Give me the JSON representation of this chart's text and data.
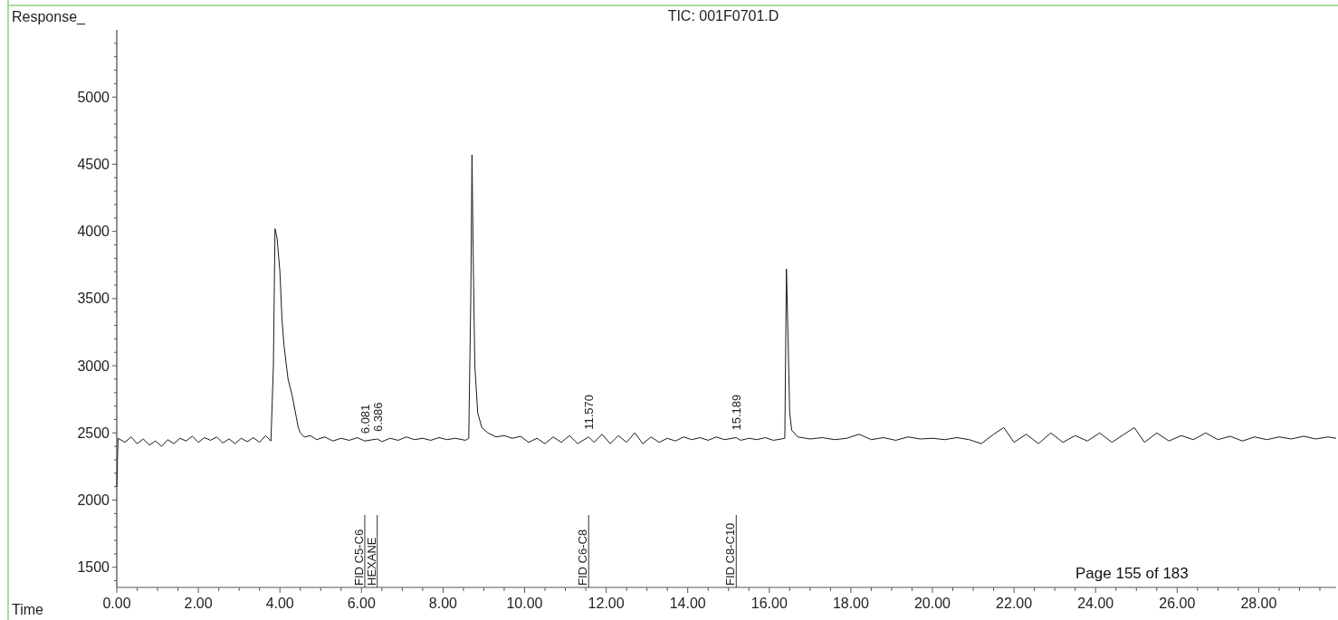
{
  "chart_data": {
    "type": "line",
    "title": "TIC: 001F0701.D",
    "xlabel": "Time",
    "ylabel": "Response_",
    "x": [
      0,
      0.03,
      0.2,
      0.35,
      0.5,
      0.65,
      0.8,
      0.95,
      1.1,
      1.25,
      1.4,
      1.55,
      1.7,
      1.85,
      2.0,
      2.15,
      2.3,
      2.45,
      2.6,
      2.75,
      2.9,
      3.05,
      3.2,
      3.35,
      3.5,
      3.65,
      3.78,
      3.84,
      3.88,
      3.93,
      4.0,
      4.05,
      4.1,
      4.2,
      4.3,
      4.4,
      4.45,
      4.5,
      4.6,
      4.75,
      4.9,
      5.1,
      5.3,
      5.5,
      5.7,
      5.9,
      6.081,
      6.386,
      6.5,
      6.7,
      6.9,
      7.1,
      7.3,
      7.5,
      7.7,
      7.9,
      8.1,
      8.3,
      8.55,
      8.63,
      8.68,
      8.71,
      8.74,
      8.78,
      8.85,
      8.95,
      9.1,
      9.3,
      9.5,
      9.7,
      9.9,
      10.1,
      10.3,
      10.5,
      10.7,
      10.9,
      11.1,
      11.3,
      11.57,
      11.7,
      11.9,
      12.1,
      12.3,
      12.5,
      12.7,
      12.9,
      13.1,
      13.3,
      13.5,
      13.7,
      13.9,
      14.1,
      14.3,
      14.5,
      14.7,
      14.9,
      15.189,
      15.3,
      15.5,
      15.7,
      15.9,
      16.1,
      16.3,
      16.38,
      16.42,
      16.46,
      16.5,
      16.55,
      16.7,
      17.0,
      17.3,
      17.6,
      17.9,
      18.2,
      18.5,
      18.8,
      19.1,
      19.4,
      19.7,
      20.0,
      20.3,
      20.6,
      20.9,
      21.2,
      21.5,
      21.75,
      22.0,
      22.3,
      22.6,
      22.9,
      23.2,
      23.5,
      23.8,
      24.1,
      24.4,
      24.7,
      24.95,
      25.2,
      25.5,
      25.8,
      26.1,
      26.4,
      26.7,
      27.0,
      27.3,
      27.6,
      27.9,
      28.2,
      28.5,
      28.8,
      29.1,
      29.4,
      29.7,
      29.9
    ],
    "series": [
      {
        "color": "#1a1a1a",
        "values": [
          2100,
          2460,
          2430,
          2470,
          2420,
          2455,
          2410,
          2440,
          2400,
          2450,
          2420,
          2460,
          2440,
          2475,
          2430,
          2465,
          2445,
          2470,
          2425,
          2455,
          2420,
          2460,
          2435,
          2465,
          2430,
          2480,
          2440,
          3000,
          4020,
          3950,
          3700,
          3350,
          3150,
          2900,
          2780,
          2620,
          2540,
          2500,
          2470,
          2480,
          2450,
          2470,
          2440,
          2460,
          2445,
          2465,
          2440,
          2455,
          2435,
          2460,
          2445,
          2470,
          2450,
          2460,
          2445,
          2465,
          2450,
          2460,
          2445,
          2460,
          3500,
          4570,
          3800,
          3000,
          2650,
          2540,
          2500,
          2470,
          2480,
          2460,
          2475,
          2430,
          2460,
          2420,
          2470,
          2430,
          2480,
          2420,
          2470,
          2430,
          2490,
          2420,
          2480,
          2430,
          2500,
          2420,
          2470,
          2430,
          2460,
          2440,
          2470,
          2450,
          2465,
          2445,
          2470,
          2450,
          2465,
          2445,
          2460,
          2450,
          2465,
          2445,
          2455,
          2460,
          3720,
          3200,
          2650,
          2520,
          2470,
          2455,
          2465,
          2450,
          2460,
          2490,
          2450,
          2465,
          2445,
          2470,
          2455,
          2460,
          2450,
          2465,
          2450,
          2420,
          2490,
          2540,
          2430,
          2490,
          2420,
          2500,
          2430,
          2480,
          2440,
          2500,
          2430,
          2490,
          2540,
          2430,
          2500,
          2440,
          2480,
          2450,
          2500,
          2450,
          2475,
          2440,
          2470,
          2450,
          2470,
          2455,
          2475,
          2455,
          2470,
          2460
        ]
      }
    ],
    "xlim": [
      0,
      29.9
    ],
    "ylim": [
      1350,
      5500
    ],
    "xticks": [
      {
        "value": 0,
        "label": "0.00"
      },
      {
        "value": 0.5,
        "label": null
      },
      {
        "value": 1,
        "label": null
      },
      {
        "value": 1.5,
        "label": null
      },
      {
        "value": 2,
        "label": "2.00"
      },
      {
        "value": 2.5,
        "label": null
      },
      {
        "value": 3,
        "label": null
      },
      {
        "value": 3.5,
        "label": null
      },
      {
        "value": 4,
        "label": "4.00"
      },
      {
        "value": 4.5,
        "label": null
      },
      {
        "value": 5,
        "label": null
      },
      {
        "value": 5.5,
        "label": null
      },
      {
        "value": 6,
        "label": "6.00"
      },
      {
        "value": 6.5,
        "label": null
      },
      {
        "value": 7,
        "label": null
      },
      {
        "value": 7.5,
        "label": null
      },
      {
        "value": 8,
        "label": "8.00"
      },
      {
        "value": 8.5,
        "label": null
      },
      {
        "value": 9,
        "label": null
      },
      {
        "value": 9.5,
        "label": null
      },
      {
        "value": 10,
        "label": "10.00"
      },
      {
        "value": 10.5,
        "label": null
      },
      {
        "value": 11,
        "label": null
      },
      {
        "value": 11.5,
        "label": null
      },
      {
        "value": 12,
        "label": "12.00"
      },
      {
        "value": 12.5,
        "label": null
      },
      {
        "value": 13,
        "label": null
      },
      {
        "value": 13.5,
        "label": null
      },
      {
        "value": 14,
        "label": "14.00"
      },
      {
        "value": 14.5,
        "label": null
      },
      {
        "value": 15,
        "label": null
      },
      {
        "value": 15.5,
        "label": null
      },
      {
        "value": 16,
        "label": "16.00"
      },
      {
        "value": 16.5,
        "label": null
      },
      {
        "value": 17,
        "label": null
      },
      {
        "value": 17.5,
        "label": null
      },
      {
        "value": 18,
        "label": "18.00"
      },
      {
        "value": 18.5,
        "label": null
      },
      {
        "value": 19,
        "label": null
      },
      {
        "value": 19.5,
        "label": null
      },
      {
        "value": 20,
        "label": "20.00"
      },
      {
        "value": 20.5,
        "label": null
      },
      {
        "value": 21,
        "label": null
      },
      {
        "value": 21.5,
        "label": null
      },
      {
        "value": 22,
        "label": "22.00"
      },
      {
        "value": 22.5,
        "label": null
      },
      {
        "value": 23,
        "label": null
      },
      {
        "value": 23.5,
        "label": null
      },
      {
        "value": 24,
        "label": "24.00"
      },
      {
        "value": 24.5,
        "label": null
      },
      {
        "value": 25,
        "label": null
      },
      {
        "value": 25.5,
        "label": null
      },
      {
        "value": 26,
        "label": "26.00"
      },
      {
        "value": 26.5,
        "label": null
      },
      {
        "value": 27,
        "label": null
      },
      {
        "value": 27.5,
        "label": null
      },
      {
        "value": 28,
        "label": "28.00"
      },
      {
        "value": 28.5,
        "label": null
      },
      {
        "value": 29,
        "label": null
      },
      {
        "value": 29.5,
        "label": null
      }
    ],
    "yticks": [
      {
        "value": 1400,
        "label": null
      },
      1500,
      {
        "value": 1600,
        "label": null
      },
      {
        "value": 1700,
        "label": null
      },
      {
        "value": 1800,
        "label": null
      },
      {
        "value": 1900,
        "label": null
      },
      2000,
      {
        "value": 2100,
        "label": null
      },
      {
        "value": 2200,
        "label": null
      },
      {
        "value": 2300,
        "label": null
      },
      {
        "value": 2400,
        "label": null
      },
      2500,
      {
        "value": 2600,
        "label": null
      },
      {
        "value": 2700,
        "label": null
      },
      {
        "value": 2800,
        "label": null
      },
      {
        "value": 2900,
        "label": null
      },
      3000,
      {
        "value": 3100,
        "label": null
      },
      {
        "value": 3200,
        "label": null
      },
      {
        "value": 3300,
        "label": null
      },
      {
        "value": 3400,
        "label": null
      },
      3500,
      {
        "value": 3600,
        "label": null
      },
      {
        "value": 3700,
        "label": null
      },
      {
        "value": 3800,
        "label": null
      },
      {
        "value": 3900,
        "label": null
      },
      4000,
      {
        "value": 4100,
        "label": null
      },
      {
        "value": 4200,
        "label": null
      },
      {
        "value": 4300,
        "label": null
      },
      {
        "value": 4400,
        "label": null
      },
      4500,
      {
        "value": 4600,
        "label": null
      },
      {
        "value": 4700,
        "label": null
      },
      {
        "value": 4800,
        "label": null
      },
      {
        "value": 4900,
        "label": null
      },
      5000,
      {
        "value": 5100,
        "label": null
      },
      {
        "value": 5200,
        "label": null
      },
      {
        "value": 5300,
        "label": null
      },
      {
        "value": 5400,
        "label": null
      }
    ],
    "grid": false,
    "marker": "none",
    "line_style": "solid",
    "ref_lines": [
      {
        "axis": "x",
        "value": 6.081,
        "label": "FID C5-C6"
      },
      {
        "axis": "x",
        "value": 6.386,
        "label": "HEXANE"
      },
      {
        "axis": "x",
        "value": 11.57,
        "label": "FID C6-C8"
      },
      {
        "axis": "x",
        "value": 15.189,
        "label": "FID C8-C10"
      }
    ],
    "annotations": [
      {
        "text": "6.081",
        "x": 6.081,
        "y": 2440
      },
      {
        "text": "6.386",
        "x": 6.386,
        "y": 2455
      },
      {
        "text": "11.570",
        "x": 11.57,
        "y": 2470
      },
      {
        "text": "15.189",
        "x": 15.189,
        "y": 2465
      },
      "Page 155 of 183"
    ]
  }
}
